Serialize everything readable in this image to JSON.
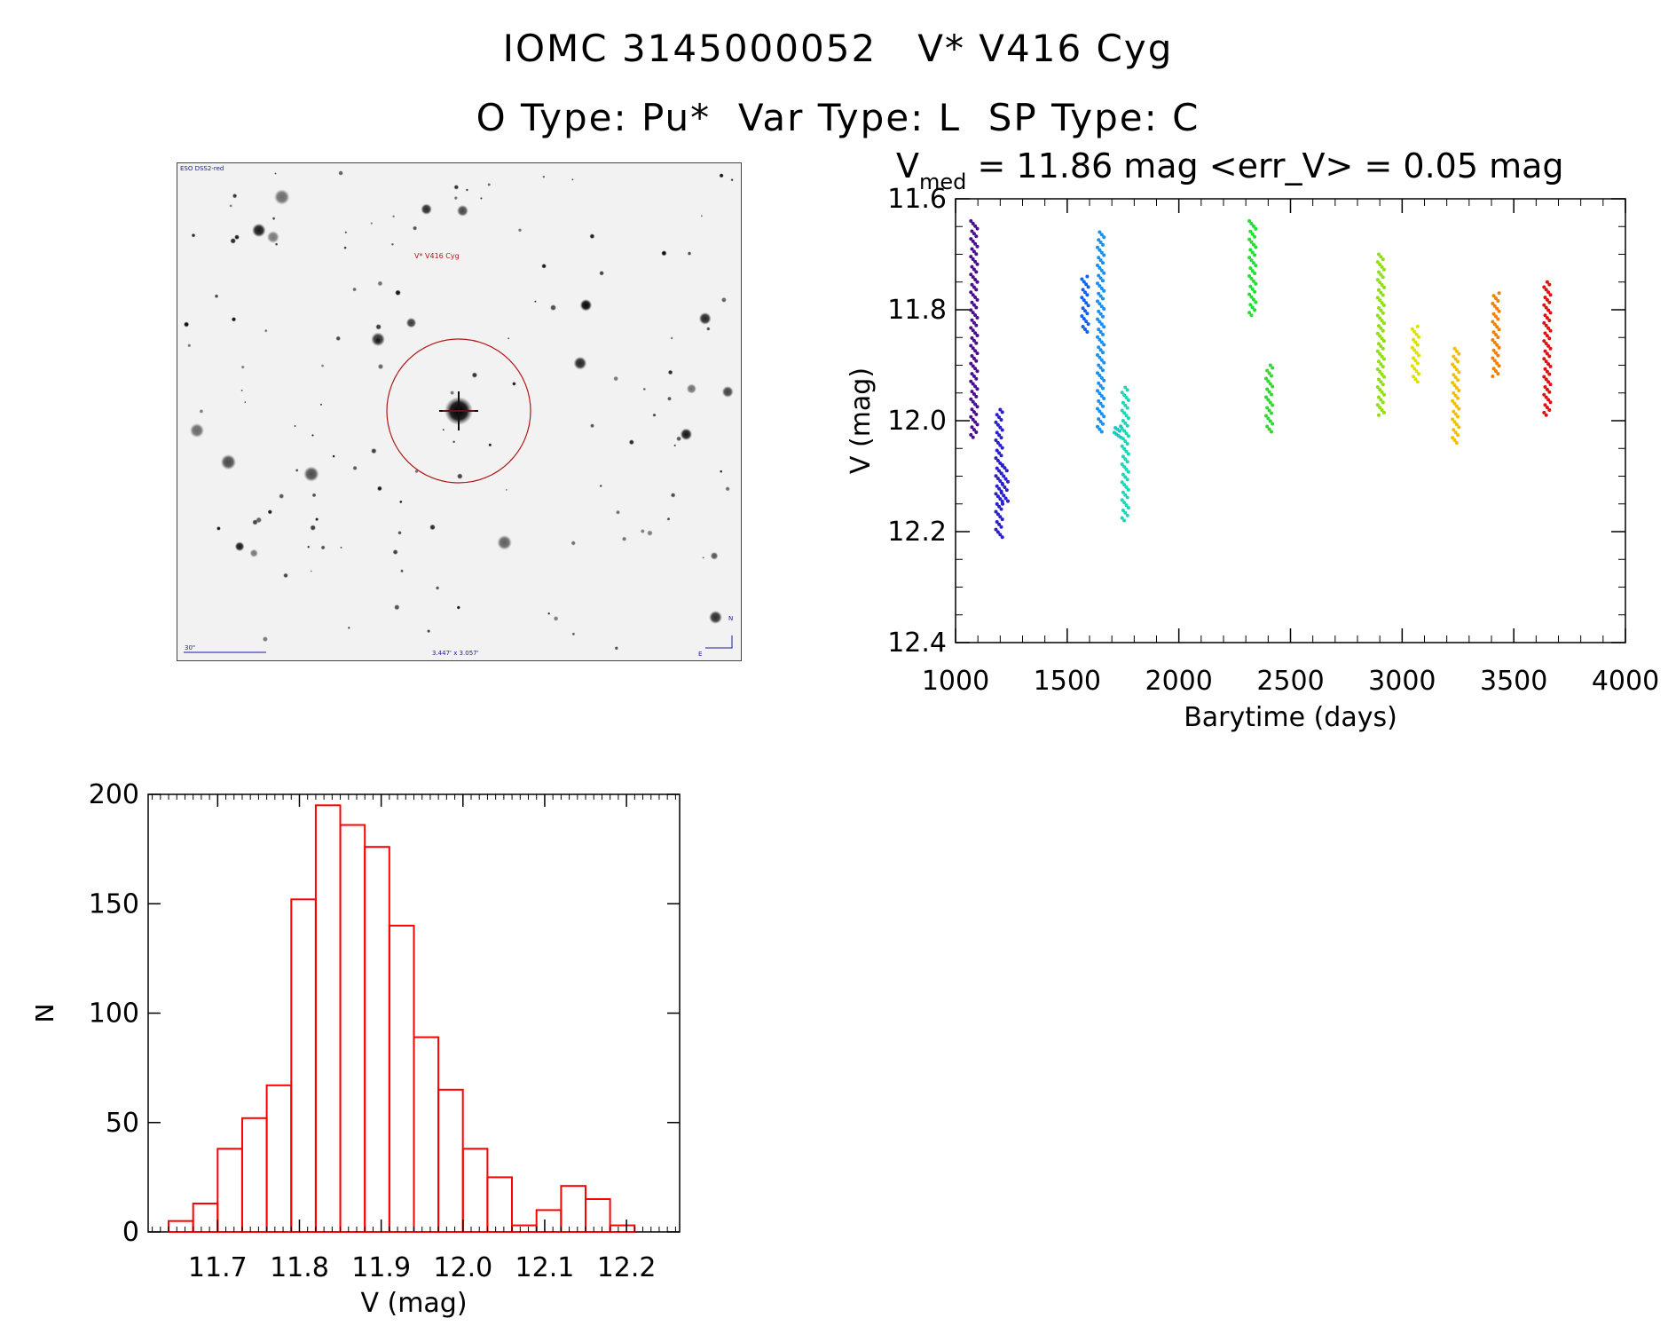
{
  "header": {
    "line1": "IOMC 3145000052   V* V416 Cyg",
    "line2": "O Type: Pu*  Var Type: L  SP Type: C"
  },
  "finder": {
    "survey": "ESO DSS2-red",
    "target_label": "V* V416 Cyg",
    "scale_label": "30\"",
    "fov_label": "3.447' x 3.057'",
    "north": "N",
    "east": "E"
  },
  "lightcurve": {
    "title_prefix": "V",
    "title_sub": "med",
    "title_rest": " = 11.86 mag <err_V> = 0.05 mag"
  },
  "chart_data": [
    {
      "type": "scatter",
      "xlabel": "Barytime (days)",
      "ylabel": "V (mag)",
      "xlim": [
        1000,
        4000
      ],
      "ylim": [
        12.4,
        11.6
      ],
      "y_inverted": true,
      "xticks": [
        "1000",
        "1500",
        "2000",
        "2500",
        "3000",
        "3500",
        "4000"
      ],
      "yticks": [
        "11.6",
        "11.8",
        "12.0",
        "12.2",
        "12.4"
      ],
      "groups": [
        {
          "x": 1083,
          "ymin": 11.64,
          "ymax": 12.03,
          "color": "#4a0d8c"
        },
        {
          "x": 1195,
          "ymin": 11.98,
          "ymax": 12.21,
          "color": "#2a1fc8"
        },
        {
          "x": 1220,
          "ymin": 12.08,
          "ymax": 12.15,
          "color": "#2a1fc8"
        },
        {
          "x": 1580,
          "ymin": 11.74,
          "ymax": 11.84,
          "color": "#1060f0"
        },
        {
          "x": 1650,
          "ymin": 11.66,
          "ymax": 12.02,
          "color": "#1a90f0"
        },
        {
          "x": 1725,
          "ymin": 12.01,
          "ymax": 12.03,
          "color": "#18c8c8"
        },
        {
          "x": 1760,
          "ymin": 11.94,
          "ymax": 12.18,
          "color": "#18d8b8"
        },
        {
          "x": 2330,
          "ymin": 11.64,
          "ymax": 11.81,
          "color": "#20e030"
        },
        {
          "x": 2405,
          "ymin": 11.9,
          "ymax": 12.02,
          "color": "#30d830"
        },
        {
          "x": 2905,
          "ymin": 11.7,
          "ymax": 11.99,
          "color": "#90e010"
        },
        {
          "x": 3060,
          "ymin": 11.83,
          "ymax": 11.93,
          "color": "#e0e000"
        },
        {
          "x": 3240,
          "ymin": 11.87,
          "ymax": 12.04,
          "color": "#f0c000"
        },
        {
          "x": 3420,
          "ymin": 11.77,
          "ymax": 11.92,
          "color": "#f08000"
        },
        {
          "x": 3650,
          "ymin": 11.75,
          "ymax": 11.99,
          "color": "#e01010"
        }
      ]
    },
    {
      "type": "bar",
      "xlabel": "V (mag)",
      "ylabel": "N",
      "xlim": [
        11.615,
        12.265
      ],
      "ylim": [
        0,
        200
      ],
      "bin_width": 0.03,
      "bin_starts": [
        11.64,
        11.67,
        11.7,
        11.73,
        11.76,
        11.79,
        11.82,
        11.85,
        11.88,
        11.91,
        11.94,
        11.97,
        12.0,
        12.03,
        12.06,
        12.09,
        12.12,
        12.15,
        12.18
      ],
      "values": [
        5,
        13,
        38,
        52,
        67,
        152,
        195,
        186,
        176,
        140,
        89,
        65,
        38,
        25,
        3,
        10,
        21,
        15,
        3
      ],
      "xticks": [
        "11.7",
        "11.8",
        "11.9",
        "12.0",
        "12.1",
        "12.2"
      ],
      "yticks": [
        "0",
        "50",
        "100",
        "150",
        "200"
      ],
      "color": "#ff0000"
    }
  ]
}
